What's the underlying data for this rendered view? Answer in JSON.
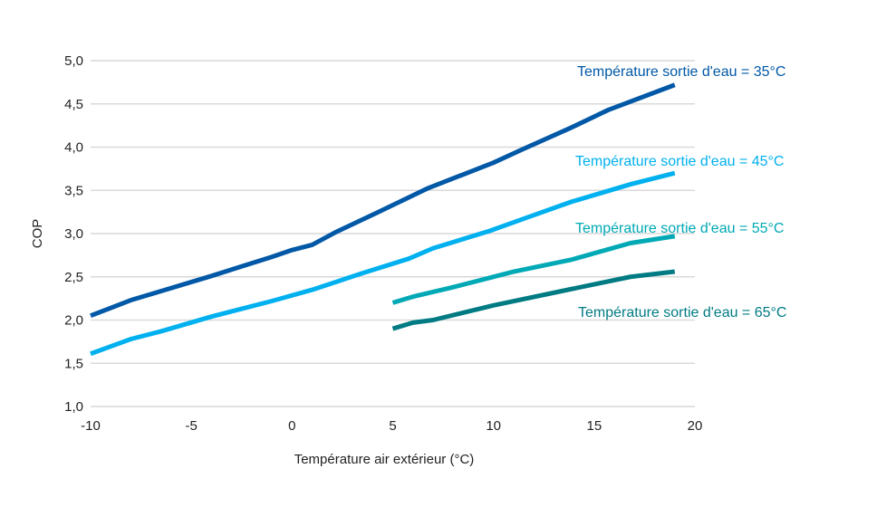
{
  "chart_data": {
    "type": "line",
    "title": "",
    "xlabel": "Température air extérieur (°C)",
    "ylabel": "COP",
    "xlim": [
      -10,
      20
    ],
    "ylim": [
      1.0,
      5.0
    ],
    "xticks": [
      -10,
      -5,
      0,
      5,
      10,
      15,
      20
    ],
    "xtick_labels": [
      "-10",
      "-5",
      "0",
      "5",
      "10",
      "15",
      "20"
    ],
    "yticks": [
      1.0,
      1.5,
      2.0,
      2.5,
      3.0,
      3.5,
      4.0,
      4.5,
      5.0
    ],
    "ytick_labels": [
      "1,0",
      "1,5",
      "2,0",
      "2,5",
      "3,0",
      "3,5",
      "4,0",
      "4,5",
      "5,0"
    ],
    "grid": "horizontal",
    "legend": "inline labels at right",
    "series": [
      {
        "name": "Température sortie d'eau = 35°C",
        "color": "#0058a6",
        "x": [
          -10,
          -8,
          -7,
          -4,
          -1,
          0,
          1,
          2.2,
          4.2,
          6.7,
          10,
          11.4,
          13.9,
          15.7,
          19
        ],
        "y": [
          2.05,
          2.23,
          2.3,
          2.51,
          2.73,
          2.81,
          2.87,
          3.02,
          3.24,
          3.52,
          3.82,
          3.97,
          4.23,
          4.43,
          4.72
        ]
      },
      {
        "name": "Température sortie d'eau = 45°C",
        "color": "#00b0ef",
        "x": [
          -10,
          -8,
          -6.5,
          -4,
          -1,
          1,
          3.6,
          5.8,
          7,
          9.8,
          11.6,
          13.9,
          16.8,
          19
        ],
        "y": [
          1.61,
          1.78,
          1.87,
          2.04,
          2.22,
          2.35,
          2.55,
          2.71,
          2.83,
          3.03,
          3.18,
          3.37,
          3.57,
          3.7
        ]
      },
      {
        "name": "Température sortie d'eau = 55°C",
        "color": "#00a9b5",
        "x": [
          5,
          6,
          8,
          11,
          13.9,
          16.8,
          19
        ],
        "y": [
          2.2,
          2.27,
          2.38,
          2.56,
          2.7,
          2.89,
          2.97
        ]
      },
      {
        "name": "Température sortie d'eau = 65°C",
        "color": "#007b83",
        "x": [
          5,
          6,
          7,
          10,
          13.9,
          16.8,
          19
        ],
        "y": [
          1.9,
          1.97,
          2.0,
          2.17,
          2.36,
          2.5,
          2.56
        ]
      }
    ]
  }
}
